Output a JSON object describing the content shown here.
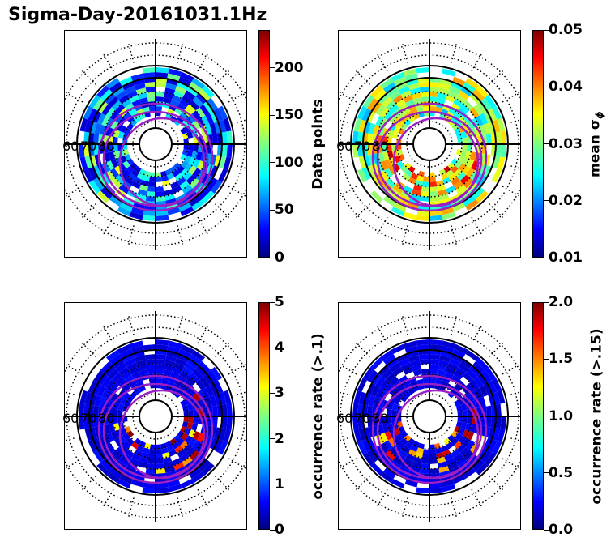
{
  "title": "Sigma-Day-20161031.1Hz",
  "chart_data": [
    {
      "type": "heatmap",
      "projection": "polar",
      "radial_labels": [
        "60",
        "70",
        "80"
      ],
      "colorbar": {
        "label": "Data points",
        "ticks": [
          "0",
          "50",
          "100",
          "150",
          "200"
        ],
        "vmin": 0,
        "vmax": 240,
        "colormap": "jet"
      },
      "accent": "#9b1fc2"
    },
    {
      "type": "heatmap",
      "projection": "polar",
      "radial_labels": [
        "60",
        "70",
        "80"
      ],
      "colorbar": {
        "label": "mean σ",
        "label_sub": "ϕ",
        "ticks": [
          "0.01",
          "0.02",
          "0.03",
          "0.04",
          "0.05"
        ],
        "vmin": 0.01,
        "vmax": 0.05,
        "colormap": "jet"
      },
      "accent": "#9b1fc2"
    },
    {
      "type": "heatmap",
      "projection": "polar",
      "radial_labels": [
        "60",
        "70",
        "80"
      ],
      "colorbar": {
        "label": "occurrence rate (>.1)",
        "ticks": [
          "0",
          "1",
          "2",
          "3",
          "4",
          "5"
        ],
        "vmin": 0,
        "vmax": 5,
        "colormap": "jet"
      },
      "accent": "#9b1fc2"
    },
    {
      "type": "heatmap",
      "projection": "polar",
      "radial_labels": [
        "60",
        "70",
        "80"
      ],
      "colorbar": {
        "label": "occurrence rate (>.15)",
        "ticks": [
          "0.0",
          "0.5",
          "1.0",
          "1.5",
          "2.0"
        ],
        "vmin": 0,
        "vmax": 2,
        "colormap": "jet"
      },
      "accent": "#9b1fc2"
    }
  ]
}
